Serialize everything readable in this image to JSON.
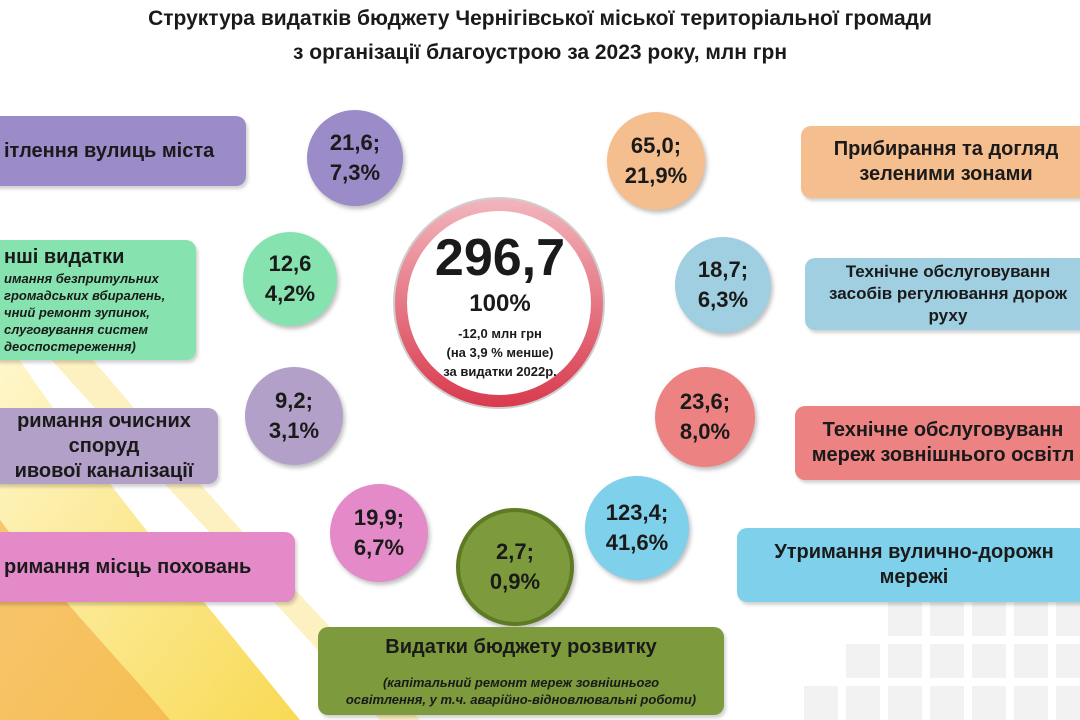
{
  "title": {
    "line1": "Структура видатків бюджету Чернігівської міської територіальної громади",
    "line2": "з організації благоустрою за 2023 року, млн грн"
  },
  "chart_data": {
    "type": "pie",
    "title": "Структура видатків бюджету Чернігівської міської територіальної громади з організації благоустрою за 2023 року, млн грн",
    "total": {
      "value_label": "296,7",
      "percent_label": "100%",
      "change_line1": "-12,0 млн грн",
      "change_line2": "(на 3,9 % менше)",
      "change_line3": "за видатки 2022р."
    },
    "categories": [
      {
        "label": "ітлення вулиць міста",
        "note": "",
        "value": 21.6,
        "percent": 7.3,
        "value_text": "21,6;",
        "percent_text": "7,3%",
        "color": "#9b8bc9"
      },
      {
        "label": "нші видатки",
        "note_lines": [
          "имання безпритульних",
          "громадських вбиралень,",
          "чний ремонт зупинок,",
          "слуговування систем",
          "деоспостереження)"
        ],
        "value": 12.6,
        "percent": 4.2,
        "value_text": "12,6",
        "percent_text": "4,2%",
        "color": "#86e3b0"
      },
      {
        "label_lines": [
          "римання очисних",
          "споруд",
          "ивової каналізації"
        ],
        "value": 9.2,
        "percent": 3.1,
        "value_text": "9,2;",
        "percent_text": "3,1%",
        "color": "#b3a0c8"
      },
      {
        "label": "римання місць поховань",
        "value": 19.9,
        "percent": 6.7,
        "value_text": "19,9;",
        "percent_text": "6,7%",
        "color": "#e48ac9"
      },
      {
        "label": "Видатки бюджету розвитку",
        "note_lines": [
          "(капітальний ремонт мереж зовнішнього",
          "освітлення, у т.ч. аварійно-відновлювальні роботи)"
        ],
        "value": 2.7,
        "percent": 0.9,
        "value_text": "2,7;",
        "percent_text": "0,9%",
        "color": "#7d9a3c"
      },
      {
        "label_lines": [
          "Утримання вулично-дорожн",
          "мережі"
        ],
        "value": 123.4,
        "percent": 41.6,
        "value_text": "123,4;",
        "percent_text": "41,6%",
        "color": "#7fd0ea"
      },
      {
        "label_lines": [
          "Технічне обслуговуванн",
          "мереж зовнішнього освітл"
        ],
        "value": 23.6,
        "percent": 8.0,
        "value_text": "23,6;",
        "percent_text": "8,0%",
        "color": "#ec8282"
      },
      {
        "label_lines": [
          "Технічне обслуговуванн",
          "засобів регулювання дорож",
          "руху"
        ],
        "value": 18.7,
        "percent": 6.3,
        "value_text": "18,7;",
        "percent_text": "6,3%",
        "color": "#9fcfe0"
      },
      {
        "label_lines": [
          "Прибирання та догляд",
          "зеленими зонами"
        ],
        "value": 65.0,
        "percent": 21.9,
        "value_text": "65,0;",
        "percent_text": "21,9%",
        "color": "#f5be8e"
      }
    ]
  },
  "colors": {
    "ring": "#d93a4e",
    "swoosh_yellow": "#f7d335",
    "swoosh_orange": "#f3a33a"
  }
}
